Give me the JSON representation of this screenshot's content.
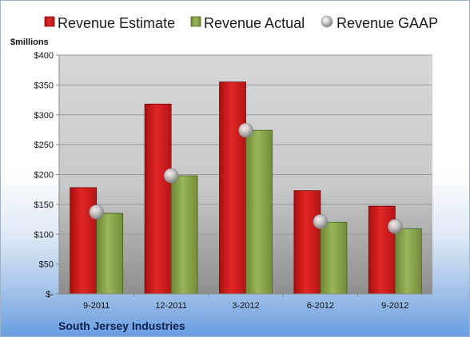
{
  "chart_data": {
    "type": "bar",
    "unit_label": "$millions",
    "company": "South Jersey Industries",
    "categories": [
      "9-2011",
      "12-2011",
      "3-2012",
      "6-2012",
      "9-2012"
    ],
    "series": [
      {
        "name": "Revenue Estimate",
        "kind": "bar",
        "color": "#d42020",
        "values": [
          178,
          318,
          355,
          173,
          147
        ]
      },
      {
        "name": "Revenue Actual",
        "kind": "bar",
        "color": "#8aa34a",
        "values": [
          135,
          198,
          274,
          120,
          109
        ]
      },
      {
        "name": "Revenue GAAP",
        "kind": "marker",
        "color": "#bdbdbd",
        "values": [
          137,
          198,
          274,
          121,
          113
        ]
      }
    ],
    "ylim": [
      0,
      400
    ],
    "yticks": [
      0,
      50,
      100,
      150,
      200,
      250,
      300,
      350,
      400
    ],
    "ytick_labels": [
      "$-",
      "$50",
      "$100",
      "$150",
      "$200",
      "$250",
      "$300",
      "$350",
      "$400"
    ],
    "grid": true,
    "legend_position": "top"
  }
}
